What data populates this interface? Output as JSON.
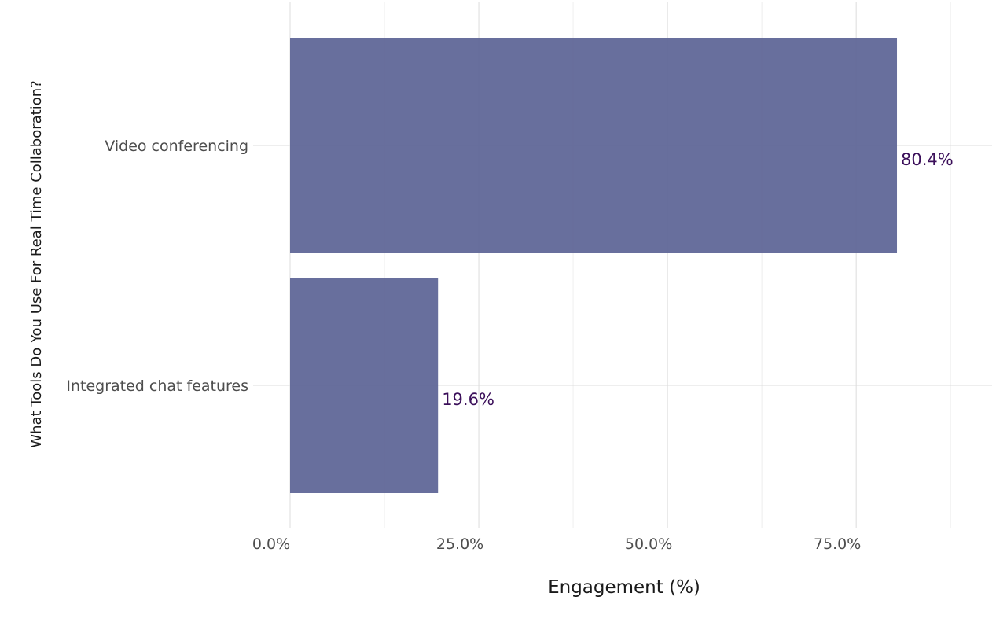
{
  "chart_data": {
    "type": "bar",
    "orientation": "horizontal",
    "categories": [
      "Video conferencing",
      "Integrated chat features"
    ],
    "values": [
      80.4,
      19.6
    ],
    "value_labels": [
      "80.4%",
      "19.6%"
    ],
    "xlabel": "Engagement (%)",
    "ylabel": "What Tools Do You Use For Real Time Collaboration?",
    "xlim": [
      0,
      93
    ],
    "x_ticks": [
      0,
      25,
      50,
      75
    ],
    "x_tick_labels": [
      "0.0%",
      "25.0%",
      "50.0%",
      "75.0%"
    ],
    "grid": true,
    "colors": {
      "bar": "#5c6496",
      "value_label": "#3b0f5a",
      "grid_major": "#dcdcdc",
      "grid_minor": "#eeeeee"
    }
  }
}
